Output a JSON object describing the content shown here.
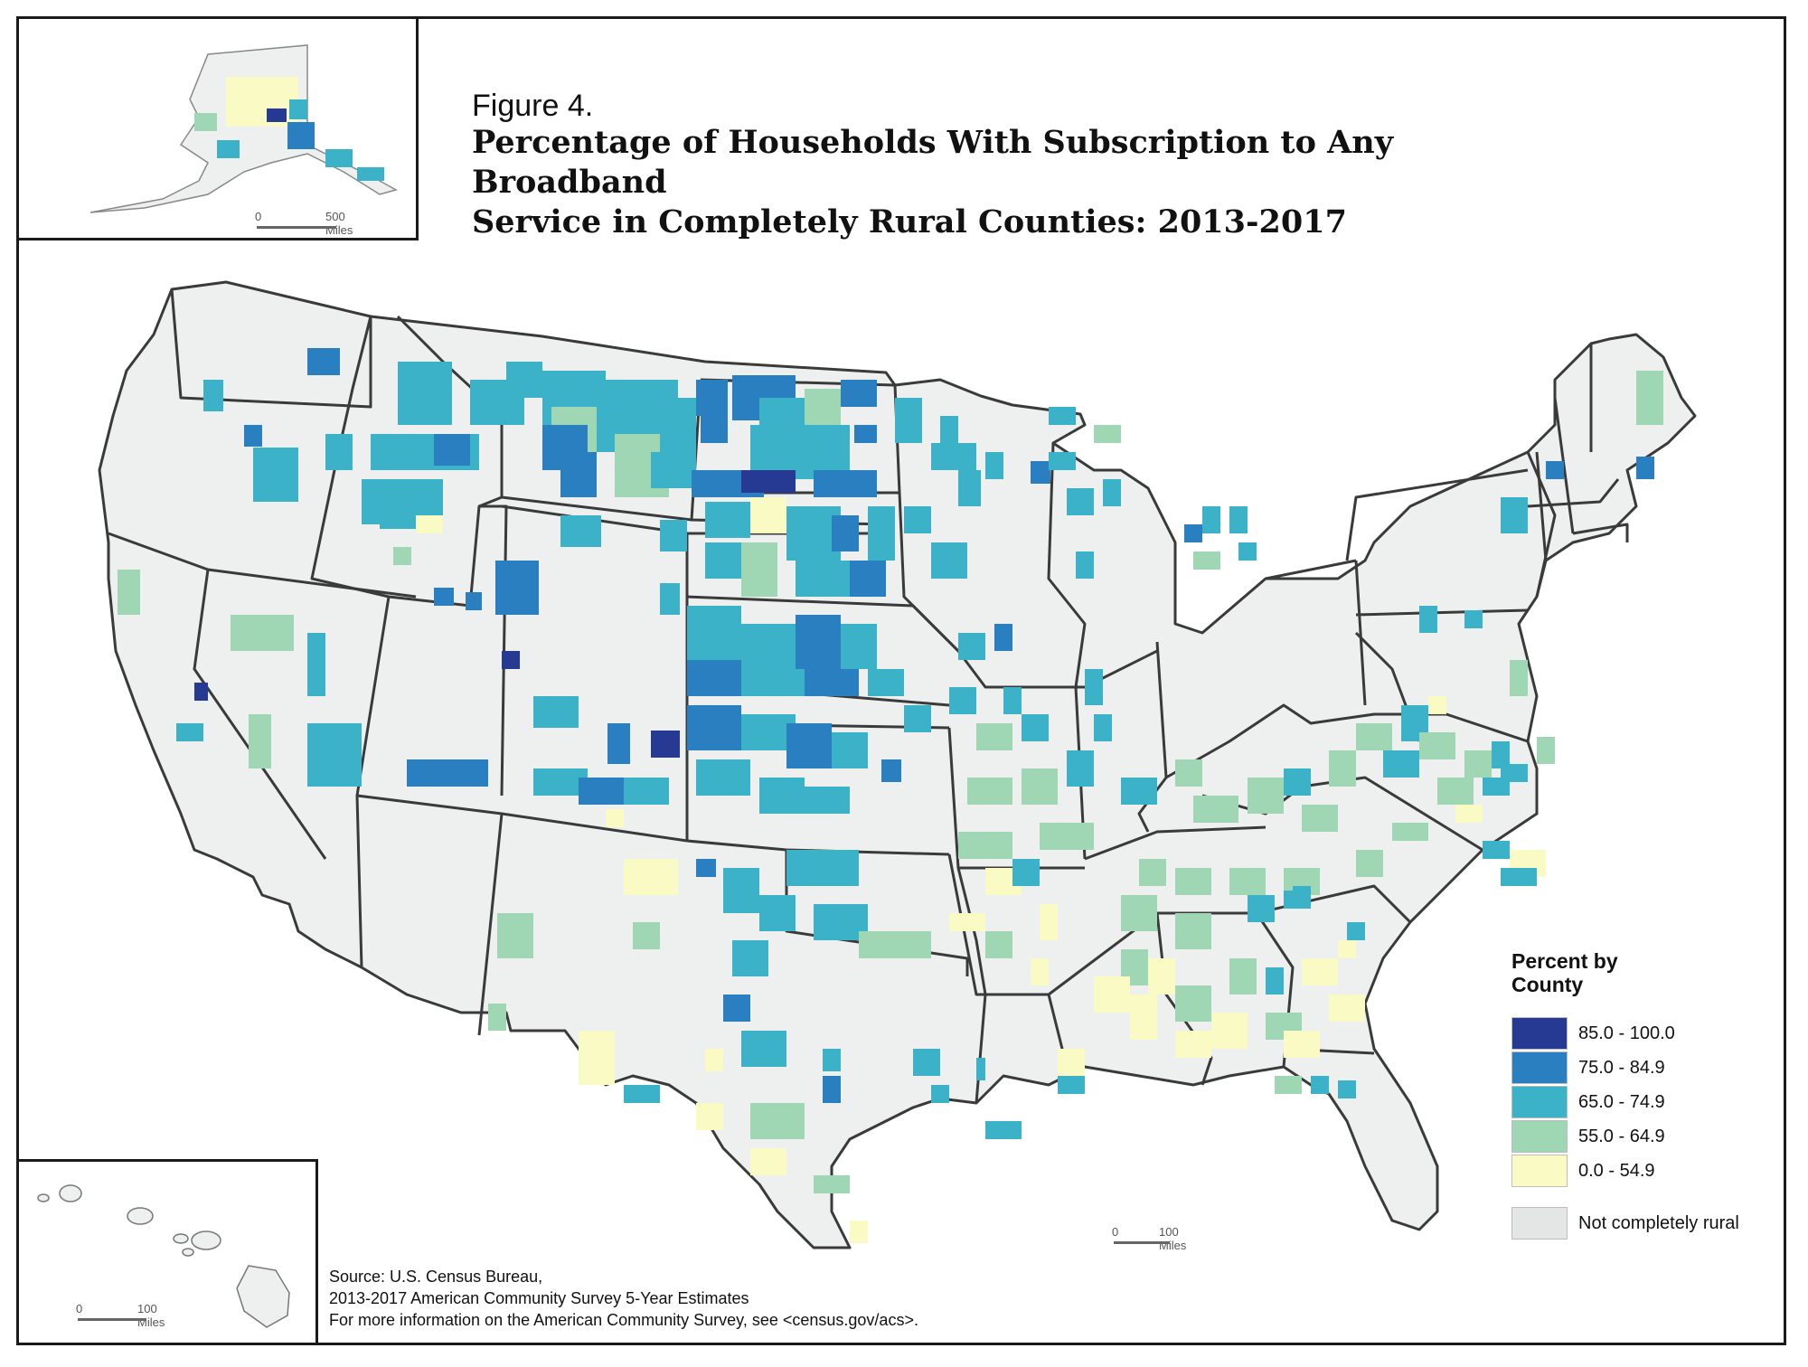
{
  "figure_label": "Figure 4.",
  "title_line1": "Percentage of Households With Subscription to Any Broadband",
  "title_line2": "Service in Completely Rural Counties: 2013-2017",
  "legend": {
    "title_line1": "Percent by",
    "title_line2": "County",
    "classes": [
      {
        "label": "85.0 - 100.0",
        "color": "#263a94"
      },
      {
        "label": "75.0 - 84.9",
        "color": "#2a7fc1"
      },
      {
        "label": "65.0 - 74.9",
        "color": "#3cb2c9"
      },
      {
        "label": "55.0 - 64.9",
        "color": "#9fd7b5"
      },
      {
        "label": "0.0 - 54.9",
        "color": "#fafac4"
      }
    ],
    "other": {
      "label": "Not completely rural",
      "color": "#e4e5e5"
    }
  },
  "scales": {
    "alaska": {
      "zero": "0",
      "distance": "500 Miles"
    },
    "conus": {
      "zero": "0",
      "distance": "100 Miles"
    },
    "hawaii": {
      "zero": "0",
      "distance": "100 Miles"
    }
  },
  "source": {
    "line1": "Source: U.S. Census Bureau,",
    "line2": "2013-2017 American Community Survey 5-Year Estimates",
    "line3": "For more information on the American Community Survey, see <census.gov/acs>."
  },
  "colors": {
    "land": "#eef0f0",
    "state_border": "#3a3a3a",
    "frame": "#1a1a1a"
  }
}
